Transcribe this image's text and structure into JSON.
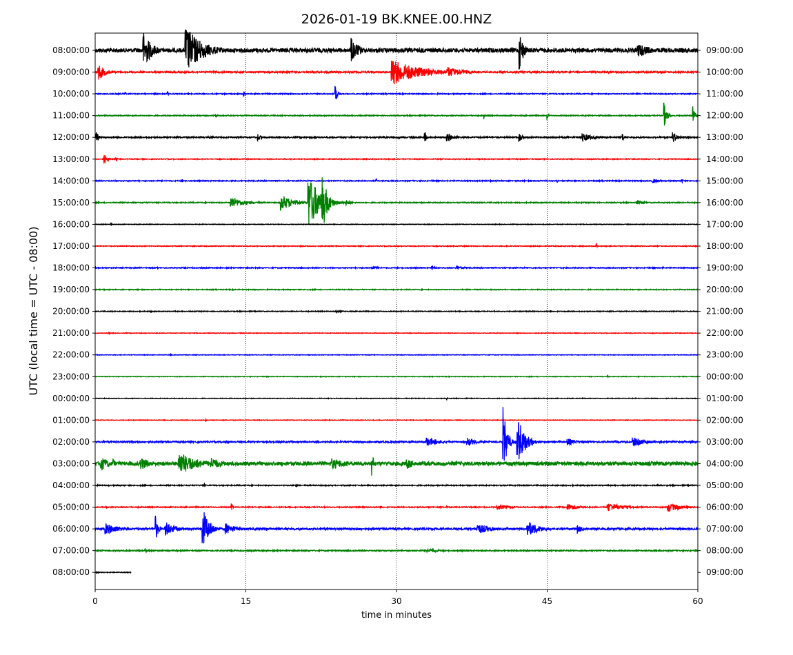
{
  "chart_data": {
    "type": "line",
    "title": "2026-01-19 BK.KNEE.00.HNZ",
    "xlabel": "time in minutes",
    "ylabel": "UTC (local time = UTC - 08:00)",
    "xlim": [
      0,
      60
    ],
    "x_ticks": [
      0,
      15,
      30,
      45,
      60
    ],
    "vertical_gridlines_at": [
      15,
      30,
      45
    ],
    "left_tick_labels": [
      "08:00:00",
      "09:00:00",
      "10:00:00",
      "11:00:00",
      "12:00:00",
      "13:00:00",
      "14:00:00",
      "15:00:00",
      "16:00:00",
      "17:00:00",
      "18:00:00",
      "19:00:00",
      "20:00:00",
      "21:00:00",
      "22:00:00",
      "23:00:00",
      "00:00:00",
      "01:00:00",
      "02:00:00",
      "03:00:00",
      "04:00:00",
      "05:00:00",
      "06:00:00",
      "07:00:00",
      "08:00:00"
    ],
    "right_tick_labels": [
      "09:00:00",
      "10:00:00",
      "11:00:00",
      "12:00:00",
      "13:00:00",
      "14:00:00",
      "15:00:00",
      "16:00:00",
      "17:00:00",
      "18:00:00",
      "19:00:00",
      "20:00:00",
      "21:00:00",
      "22:00:00",
      "23:00:00",
      "00:00:00",
      "01:00:00",
      "02:00:00",
      "03:00:00",
      "04:00:00",
      "05:00:00",
      "06:00:00",
      "07:00:00",
      "08:00:00",
      "09:00:00"
    ],
    "color_cycle": [
      "#000000",
      "#ff0000",
      "#0000ff",
      "#008000"
    ],
    "traces": [
      {
        "row": 0,
        "end_minute": 60,
        "noise": 0.22,
        "events": [
          {
            "t": 4.8,
            "amp": 2.0,
            "dur": 1.8
          },
          {
            "t": 9.0,
            "amp": 2.6,
            "dur": 3.5
          },
          {
            "t": 25.5,
            "amp": 1.3,
            "dur": 1.8
          },
          {
            "t": 42.2,
            "amp": 2.3,
            "dur": 0.9
          },
          {
            "t": 54.0,
            "amp": 0.8,
            "dur": 3.0
          }
        ]
      },
      {
        "row": 1,
        "end_minute": 60,
        "noise": 0.08,
        "events": [
          {
            "t": 0.3,
            "amp": 0.9,
            "dur": 1.5
          },
          {
            "t": 29.5,
            "amp": 1.4,
            "dur": 6.0
          },
          {
            "t": 35.0,
            "amp": 0.6,
            "dur": 3.5
          }
        ]
      },
      {
        "row": 2,
        "end_minute": 60,
        "noise": 0.05,
        "events": [
          {
            "t": 23.9,
            "amp": 1.0,
            "dur": 0.5
          },
          {
            "t": 3.0,
            "amp": 0.3,
            "dur": 0.2
          },
          {
            "t": 7.2,
            "amp": 0.3,
            "dur": 0.2
          },
          {
            "t": 14.8,
            "amp": 0.3,
            "dur": 0.2
          }
        ]
      },
      {
        "row": 3,
        "end_minute": 60,
        "noise": 0.05,
        "events": [
          {
            "t": 12.0,
            "amp": 0.3,
            "dur": 0.3
          },
          {
            "t": 38.7,
            "amp": 0.5,
            "dur": 0.2
          },
          {
            "t": 45.0,
            "amp": 0.5,
            "dur": 0.3
          },
          {
            "t": 56.6,
            "amp": 1.5,
            "dur": 0.6
          },
          {
            "t": 59.5,
            "amp": 1.0,
            "dur": 0.5
          }
        ]
      },
      {
        "row": 4,
        "end_minute": 60,
        "noise": 0.07,
        "events": [
          {
            "t": 0.1,
            "amp": 0.7,
            "dur": 0.5
          },
          {
            "t": 16.2,
            "amp": 0.4,
            "dur": 0.8
          },
          {
            "t": 32.8,
            "amp": 1.0,
            "dur": 0.3
          },
          {
            "t": 35.0,
            "amp": 0.5,
            "dur": 1.5
          },
          {
            "t": 42.2,
            "amp": 0.5,
            "dur": 0.8
          },
          {
            "t": 48.5,
            "amp": 0.5,
            "dur": 2.0
          },
          {
            "t": 52.5,
            "amp": 0.6,
            "dur": 0.3
          },
          {
            "t": 57.5,
            "amp": 0.6,
            "dur": 1.2
          }
        ]
      },
      {
        "row": 5,
        "end_minute": 60,
        "noise": 0.04,
        "events": [
          {
            "t": 0.9,
            "amp": 0.6,
            "dur": 0.6
          },
          {
            "t": 2.0,
            "amp": 0.2,
            "dur": 0.6
          }
        ]
      },
      {
        "row": 6,
        "end_minute": 60,
        "noise": 0.05,
        "events": [
          {
            "t": 8.7,
            "amp": 0.25,
            "dur": 0.2
          },
          {
            "t": 28.0,
            "amp": 0.2,
            "dur": 0.2
          },
          {
            "t": 46.0,
            "amp": 0.2,
            "dur": 0.2
          },
          {
            "t": 55.5,
            "amp": 0.25,
            "dur": 1.5
          },
          {
            "t": 58.4,
            "amp": 0.3,
            "dur": 0.3
          }
        ]
      },
      {
        "row": 7,
        "end_minute": 60,
        "noise": 0.05,
        "events": [
          {
            "t": 13.5,
            "amp": 0.6,
            "dur": 3.0
          },
          {
            "t": 18.5,
            "amp": 0.9,
            "dur": 2.5
          },
          {
            "t": 21.2,
            "amp": 3.0,
            "dur": 2.5
          },
          {
            "t": 22.6,
            "amp": 3.0,
            "dur": 1.2
          },
          {
            "t": 25.0,
            "amp": 0.3,
            "dur": 1.0
          },
          {
            "t": 54.0,
            "amp": 0.25,
            "dur": 1.5
          }
        ]
      },
      {
        "row": 8,
        "end_minute": 60,
        "noise": 0.03,
        "events": [
          {
            "t": 1.6,
            "amp": 0.2,
            "dur": 0.2
          }
        ]
      },
      {
        "row": 9,
        "end_minute": 60,
        "noise": 0.04,
        "events": [
          {
            "t": 49.9,
            "amp": 0.3,
            "dur": 0.2
          }
        ]
      },
      {
        "row": 10,
        "end_minute": 60,
        "noise": 0.05,
        "events": [
          {
            "t": 27.5,
            "amp": 0.25,
            "dur": 1.5
          },
          {
            "t": 33.5,
            "amp": 0.25,
            "dur": 0.8
          },
          {
            "t": 36.0,
            "amp": 0.25,
            "dur": 1.5
          },
          {
            "t": 56.5,
            "amp": 0.2,
            "dur": 0.2
          }
        ]
      },
      {
        "row": 11,
        "end_minute": 60,
        "noise": 0.04,
        "events": []
      },
      {
        "row": 12,
        "end_minute": 60,
        "noise": 0.04,
        "events": [
          {
            "t": 5.6,
            "amp": 0.15,
            "dur": 0.2
          },
          {
            "t": 24.0,
            "amp": 0.15,
            "dur": 1.5
          }
        ]
      },
      {
        "row": 13,
        "end_minute": 60,
        "noise": 0.03,
        "events": [
          {
            "t": 1.4,
            "amp": 0.15,
            "dur": 0.2
          }
        ]
      },
      {
        "row": 14,
        "end_minute": 60,
        "noise": 0.03,
        "events": [
          {
            "t": 7.5,
            "amp": 0.15,
            "dur": 0.2
          }
        ]
      },
      {
        "row": 15,
        "end_minute": 60,
        "noise": 0.03,
        "events": [
          {
            "t": 51.0,
            "amp": 0.15,
            "dur": 0.2
          }
        ]
      },
      {
        "row": 16,
        "end_minute": 60,
        "noise": 0.03,
        "events": [
          {
            "t": 35.0,
            "amp": 0.15,
            "dur": 0.2
          }
        ]
      },
      {
        "row": 17,
        "end_minute": 60,
        "noise": 0.03,
        "events": [
          {
            "t": 11.0,
            "amp": 0.15,
            "dur": 0.2
          }
        ]
      },
      {
        "row": 18,
        "end_minute": 60,
        "noise": 0.08,
        "events": [
          {
            "t": 33.0,
            "amp": 0.5,
            "dur": 3.0
          },
          {
            "t": 37.0,
            "amp": 0.5,
            "dur": 2.0
          },
          {
            "t": 40.6,
            "amp": 3.8,
            "dur": 0.8
          },
          {
            "t": 42.0,
            "amp": 3.0,
            "dur": 1.5
          },
          {
            "t": 47.0,
            "amp": 0.4,
            "dur": 2.0
          },
          {
            "t": 53.5,
            "amp": 0.5,
            "dur": 3.0
          }
        ]
      },
      {
        "row": 19,
        "end_minute": 60,
        "noise": 0.2,
        "events": [
          {
            "t": 0.5,
            "amp": 0.8,
            "dur": 2.0
          },
          {
            "t": 1.8,
            "amp": 0.7,
            "dur": 0.4
          },
          {
            "t": 4.5,
            "amp": 0.7,
            "dur": 2.5
          },
          {
            "t": 8.3,
            "amp": 1.3,
            "dur": 4.0
          },
          {
            "t": 11.5,
            "amp": 0.7,
            "dur": 2.5
          },
          {
            "t": 23.5,
            "amp": 0.6,
            "dur": 4.0
          },
          {
            "t": 27.5,
            "amp": 1.5,
            "dur": 0.5
          },
          {
            "t": 31.0,
            "amp": 0.6,
            "dur": 2.0
          }
        ]
      },
      {
        "row": 20,
        "end_minute": 60,
        "noise": 0.05,
        "events": [
          {
            "t": 10.9,
            "amp": 0.2,
            "dur": 0.3
          },
          {
            "t": 20.0,
            "amp": 0.2,
            "dur": 0.2
          },
          {
            "t": 40.5,
            "amp": 0.2,
            "dur": 0.2
          },
          {
            "t": 56.0,
            "amp": 0.15,
            "dur": 0.2
          }
        ]
      },
      {
        "row": 21,
        "end_minute": 60,
        "noise": 0.05,
        "events": [
          {
            "t": 1.1,
            "amp": 0.2,
            "dur": 0.2
          },
          {
            "t": 13.6,
            "amp": 0.4,
            "dur": 0.2
          },
          {
            "t": 35.0,
            "amp": 0.2,
            "dur": 0.2
          },
          {
            "t": 40.0,
            "amp": 0.3,
            "dur": 3.0
          },
          {
            "t": 47.0,
            "amp": 0.4,
            "dur": 2.5
          },
          {
            "t": 51.0,
            "amp": 0.5,
            "dur": 3.5
          },
          {
            "t": 57.0,
            "amp": 0.5,
            "dur": 3.0
          }
        ]
      },
      {
        "row": 22,
        "end_minute": 60,
        "noise": 0.1,
        "events": [
          {
            "t": 1.0,
            "amp": 0.6,
            "dur": 3.5
          },
          {
            "t": 6.0,
            "amp": 1.4,
            "dur": 0.6
          },
          {
            "t": 7.0,
            "amp": 0.8,
            "dur": 2.0
          },
          {
            "t": 10.7,
            "amp": 2.2,
            "dur": 1.5
          },
          {
            "t": 13.0,
            "amp": 0.6,
            "dur": 2.5
          },
          {
            "t": 38.0,
            "amp": 0.6,
            "dur": 3.0
          },
          {
            "t": 43.0,
            "amp": 0.9,
            "dur": 2.5
          },
          {
            "t": 48.0,
            "amp": 0.5,
            "dur": 1.0
          }
        ]
      },
      {
        "row": 23,
        "end_minute": 60,
        "noise": 0.06,
        "events": [
          {
            "t": 5.0,
            "amp": 0.2,
            "dur": 2.0
          },
          {
            "t": 33.0,
            "amp": 0.25,
            "dur": 3.0
          }
        ]
      },
      {
        "row": 24,
        "end_minute": 3.6,
        "noise": 0.04,
        "events": []
      }
    ]
  }
}
